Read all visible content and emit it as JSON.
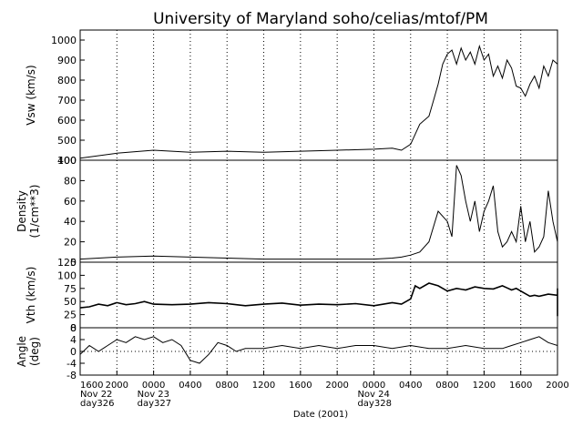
{
  "title": "University of Maryland  soho/celias/mtof/PM",
  "xlabel": "Date (2001)",
  "colors": {
    "line": "#000000",
    "background": "#ffffff",
    "grid": "#000000"
  },
  "x_ticks": [
    "1600",
    "2000",
    "0000",
    "0400",
    "0800",
    "1200",
    "1600",
    "2000",
    "0000",
    "0400",
    "0800",
    "1200",
    "1600",
    "2000"
  ],
  "date_labels": [
    {
      "at": "1600",
      "date": "Nov 22",
      "doy": "day326"
    },
    {
      "at": "0000",
      "date": "Nov 23",
      "doy": "day327"
    },
    {
      "at": "0000",
      "date": "Nov 24",
      "doy": "day328"
    }
  ],
  "chart_data": [
    {
      "type": "line",
      "panel": "vsw",
      "ylabel": "Vsw (km/s)",
      "ylabel_lines": [
        "Vsw (km/s)"
      ],
      "ylim": [
        400,
        1050
      ],
      "yticks": [
        400,
        500,
        600,
        700,
        800,
        900,
        1000
      ],
      "grid": "vertical dotted",
      "x_hours": [
        0,
        4,
        8,
        12,
        16,
        20,
        24,
        28,
        32,
        34,
        35,
        36,
        36.5,
        37,
        38,
        38.5,
        39,
        39.5,
        40,
        40.5,
        41,
        41.5,
        42,
        42.5,
        43,
        43.5,
        44,
        44.5,
        45,
        45.5,
        46,
        46.5,
        47,
        47.5,
        48,
        48.5,
        49,
        49.5,
        50,
        50.5,
        51,
        51.5,
        52,
        52.5,
        53,
        53.5,
        54,
        54.5,
        55,
        55.5,
        56,
        56.5,
        57,
        57.5,
        58,
        58.5,
        59,
        59.5,
        60,
        60.5,
        61,
        61.5,
        62,
        62.5,
        63,
        63.5,
        64,
        64.5,
        65
      ],
      "y": [
        410,
        435,
        450,
        440,
        445,
        440,
        445,
        450,
        455,
        460,
        450,
        480,
        530,
        580,
        620,
        700,
        780,
        880,
        930,
        950,
        880,
        960,
        900,
        940,
        880,
        970,
        900,
        930,
        820,
        870,
        810,
        900,
        860,
        770,
        760,
        720,
        780,
        820,
        760,
        870,
        820,
        900,
        880,
        930,
        970,
        1000,
        1000,
        1000,
        1000,
        1000,
        1000,
        1000,
        1000,
        1000,
        990,
        1000,
        1000,
        900,
        870,
        960,
        1000,
        990,
        1000,
        1000,
        1000,
        1000,
        1000,
        1000,
        1000
      ]
    },
    {
      "type": "line",
      "panel": "density",
      "ylabel": "Density (1/cm**3)",
      "ylabel_lines": [
        "Density",
        "(1/cm**3)"
      ],
      "ylim": [
        0,
        100
      ],
      "yticks": [
        0,
        20,
        40,
        60,
        80,
        100
      ],
      "grid": "vertical dotted",
      "x_hours": [
        0,
        4,
        8,
        12,
        16,
        20,
        24,
        28,
        32,
        34,
        35,
        36,
        37,
        38,
        39,
        40,
        40.5,
        41,
        41.5,
        42,
        42.5,
        43,
        43.5,
        44,
        44.5,
        45,
        45.5,
        46,
        46.5,
        47,
        47.5,
        48,
        48.5,
        49,
        49.5,
        50,
        50.5,
        51,
        51.5,
        52,
        52.5,
        53,
        53.5,
        54,
        54.5,
        55,
        55.5,
        56,
        57,
        58,
        59,
        60,
        61,
        62,
        63,
        64,
        65
      ],
      "y": [
        3,
        5,
        6,
        5,
        4,
        3,
        3,
        3,
        3,
        4,
        5,
        7,
        10,
        20,
        50,
        40,
        25,
        95,
        85,
        60,
        40,
        60,
        30,
        50,
        60,
        75,
        30,
        15,
        20,
        30,
        20,
        55,
        20,
        40,
        10,
        15,
        25,
        70,
        40,
        20,
        60,
        15,
        10,
        8,
        55,
        20,
        10,
        8,
        6,
        5,
        4,
        3,
        2,
        1,
        1,
        1,
        1
      ]
    },
    {
      "type": "line",
      "panel": "vth",
      "ylabel": "Vth (km/s)",
      "ylabel_lines": [
        "Vth (km/s)"
      ],
      "ylim": [
        0,
        125
      ],
      "yticks": [
        0,
        25,
        50,
        75,
        100,
        125
      ],
      "grid": "vertical dotted",
      "x_hours": [
        0,
        1,
        2,
        3,
        4,
        5,
        6,
        7,
        8,
        10,
        12,
        14,
        16,
        18,
        20,
        22,
        24,
        26,
        28,
        30,
        32,
        34,
        35,
        36,
        36.5,
        37,
        38,
        39,
        40,
        41,
        42,
        43,
        44,
        45,
        46,
        46.5,
        47,
        47.5,
        48,
        48.5,
        49,
        49.5,
        50,
        51,
        52,
        53,
        54,
        55,
        56,
        56.5,
        57,
        57.5,
        58,
        58.5,
        59,
        59.5,
        60,
        60.5,
        61,
        61.5,
        62,
        63,
        64,
        65
      ],
      "y": [
        38,
        40,
        45,
        42,
        48,
        44,
        46,
        50,
        45,
        44,
        45,
        48,
        46,
        42,
        45,
        47,
        43,
        45,
        44,
        46,
        42,
        48,
        45,
        55,
        80,
        75,
        85,
        80,
        70,
        75,
        72,
        78,
        75,
        74,
        80,
        76,
        72,
        75,
        70,
        65,
        60,
        62,
        60,
        64,
        62,
        60,
        60,
        62,
        60,
        60,
        55,
        62,
        58,
        40,
        35,
        25,
        28,
        25,
        22,
        40,
        55,
        75,
        70,
        60
      ]
    },
    {
      "type": "line",
      "panel": "angle",
      "ylabel": "Angle (deg)",
      "ylabel_lines": [
        "Angle",
        "(deg)"
      ],
      "ylim": [
        -8,
        8
      ],
      "yticks": [
        -8,
        -4,
        0,
        4,
        8
      ],
      "grid": "vertical dotted plus horizontal dotted at 0",
      "x_hours": [
        0,
        1,
        2,
        3,
        4,
        5,
        6,
        7,
        8,
        9,
        10,
        11,
        12,
        13,
        14,
        15,
        16,
        17,
        18,
        20,
        22,
        24,
        26,
        28,
        30,
        32,
        34,
        36,
        38,
        40,
        42,
        44,
        46,
        47,
        48,
        49,
        50,
        51,
        52,
        53,
        54,
        55,
        56,
        57,
        58,
        59,
        60,
        61,
        62,
        63,
        64,
        65
      ],
      "y": [
        -1,
        2,
        0,
        2,
        4,
        3,
        5,
        4,
        5,
        3,
        4,
        2,
        -3,
        -4,
        -1,
        3,
        2,
        0,
        1,
        1,
        2,
        1,
        2,
        1,
        2,
        2,
        1,
        2,
        1,
        1,
        2,
        1,
        1,
        2,
        3,
        4,
        5,
        3,
        2,
        1,
        -2,
        -1,
        -3,
        -2,
        -2,
        -1,
        -1,
        -2,
        0,
        1,
        2,
        1
      ]
    }
  ]
}
